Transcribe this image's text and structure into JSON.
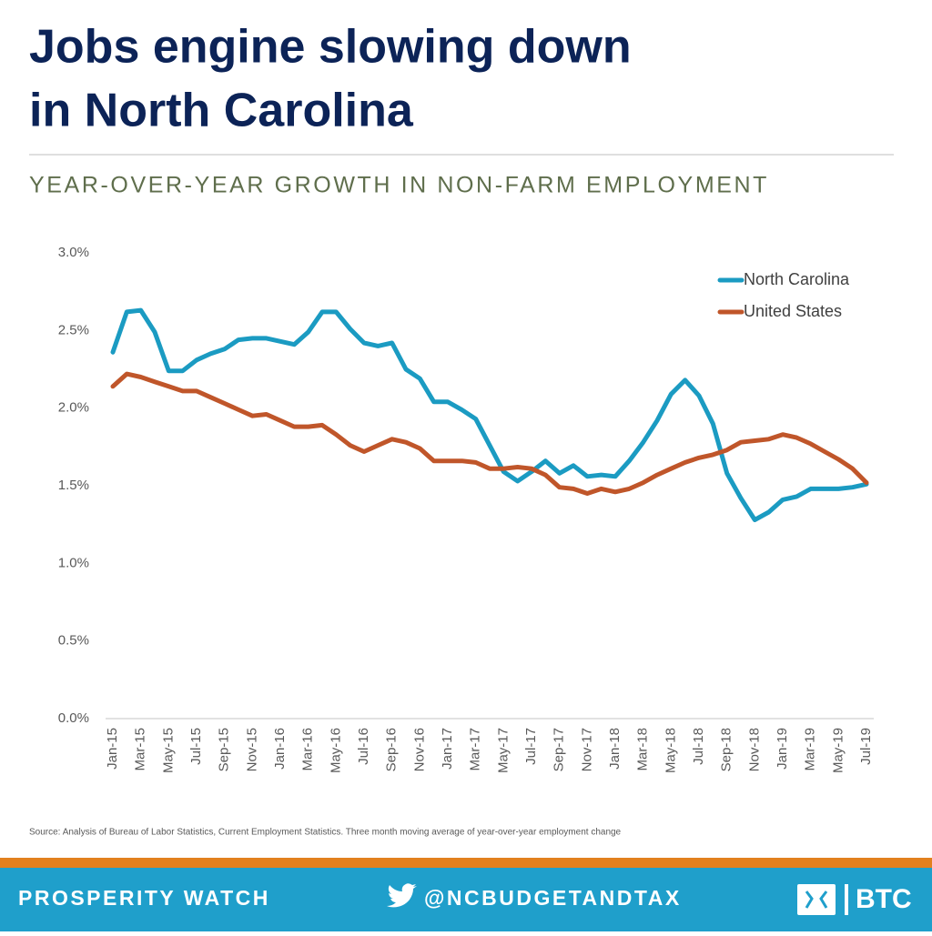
{
  "chart_data": {
    "type": "line",
    "title": "Jobs engine slowing down",
    "title_line2": "in North Carolina",
    "subtitle": "YEAR-OVER-YEAR GROWTH IN NON-FARM EMPLOYMENT",
    "source": "Source: Analysis of Bureau of Labor Statistics, Current Employment Statistics. Three month moving average of year-over-year employment change",
    "categories": [
      "Jan-15",
      null,
      "Mar-15",
      null,
      "May-15",
      null,
      "Jul-15",
      null,
      "Sep-15",
      null,
      "Nov-15",
      null,
      "Jan-16",
      null,
      "Mar-16",
      null,
      "May-16",
      null,
      "Jul-16",
      null,
      "Sep-16",
      null,
      "Nov-16",
      null,
      "Jan-17",
      null,
      "Mar-17",
      null,
      "May-17",
      null,
      "Jul-17",
      null,
      "Sep-17",
      null,
      "Nov-17",
      null,
      "Jan-18",
      null,
      "Mar-18",
      null,
      "May-18",
      null,
      "Jul-18",
      null,
      "Sep-18",
      null,
      "Nov-18",
      null,
      "Jan-19",
      null,
      "Mar-19",
      null,
      "May-19",
      null,
      "Jul-19"
    ],
    "series": [
      {
        "name": "North Carolina",
        "color": "#1b9bc2",
        "values": [
          2.36,
          2.62,
          2.63,
          2.49,
          2.24,
          2.24,
          2.31,
          2.35,
          2.38,
          2.44,
          2.45,
          2.45,
          2.43,
          2.41,
          2.49,
          2.62,
          2.62,
          2.51,
          2.42,
          2.4,
          2.42,
          2.25,
          2.19,
          2.04,
          2.04,
          1.99,
          1.93,
          1.76,
          1.59,
          1.53,
          1.59,
          1.66,
          1.58,
          1.63,
          1.56,
          1.57,
          1.56,
          1.66,
          1.78,
          1.92,
          2.09,
          2.18,
          2.08,
          1.9,
          1.58,
          1.42,
          1.28,
          1.33,
          1.41,
          1.43,
          1.48,
          1.48,
          1.48,
          1.49,
          1.51
        ]
      },
      {
        "name": "United States",
        "color": "#c0562a",
        "values": [
          2.14,
          2.22,
          2.2,
          2.17,
          2.14,
          2.11,
          2.11,
          2.07,
          2.03,
          1.99,
          1.95,
          1.96,
          1.92,
          1.88,
          1.88,
          1.89,
          1.83,
          1.76,
          1.72,
          1.76,
          1.8,
          1.78,
          1.74,
          1.66,
          1.66,
          1.66,
          1.65,
          1.61,
          1.61,
          1.62,
          1.61,
          1.57,
          1.49,
          1.48,
          1.45,
          1.48,
          1.46,
          1.48,
          1.52,
          1.57,
          1.61,
          1.65,
          1.68,
          1.7,
          1.73,
          1.78,
          1.79,
          1.8,
          1.83,
          1.81,
          1.77,
          1.72,
          1.67,
          1.61,
          1.52
        ]
      }
    ],
    "ylim": [
      0,
      3
    ],
    "yticks": [
      {
        "value": 0,
        "label": "0.0%"
      },
      {
        "value": 0.5,
        "label": "0.5%"
      },
      {
        "value": 1,
        "label": "1.0%"
      },
      {
        "value": 1.5,
        "label": "1.5%"
      },
      {
        "value": 2,
        "label": "2.0%"
      },
      {
        "value": 2.5,
        "label": "2.5%"
      },
      {
        "value": 3,
        "label": "3.0%"
      }
    ],
    "grid": false,
    "legend": "upper right"
  },
  "footer": {
    "left": "PROSPERITY WATCH",
    "center": "@NCBUDGETANDTAX",
    "logo": "BTC"
  }
}
